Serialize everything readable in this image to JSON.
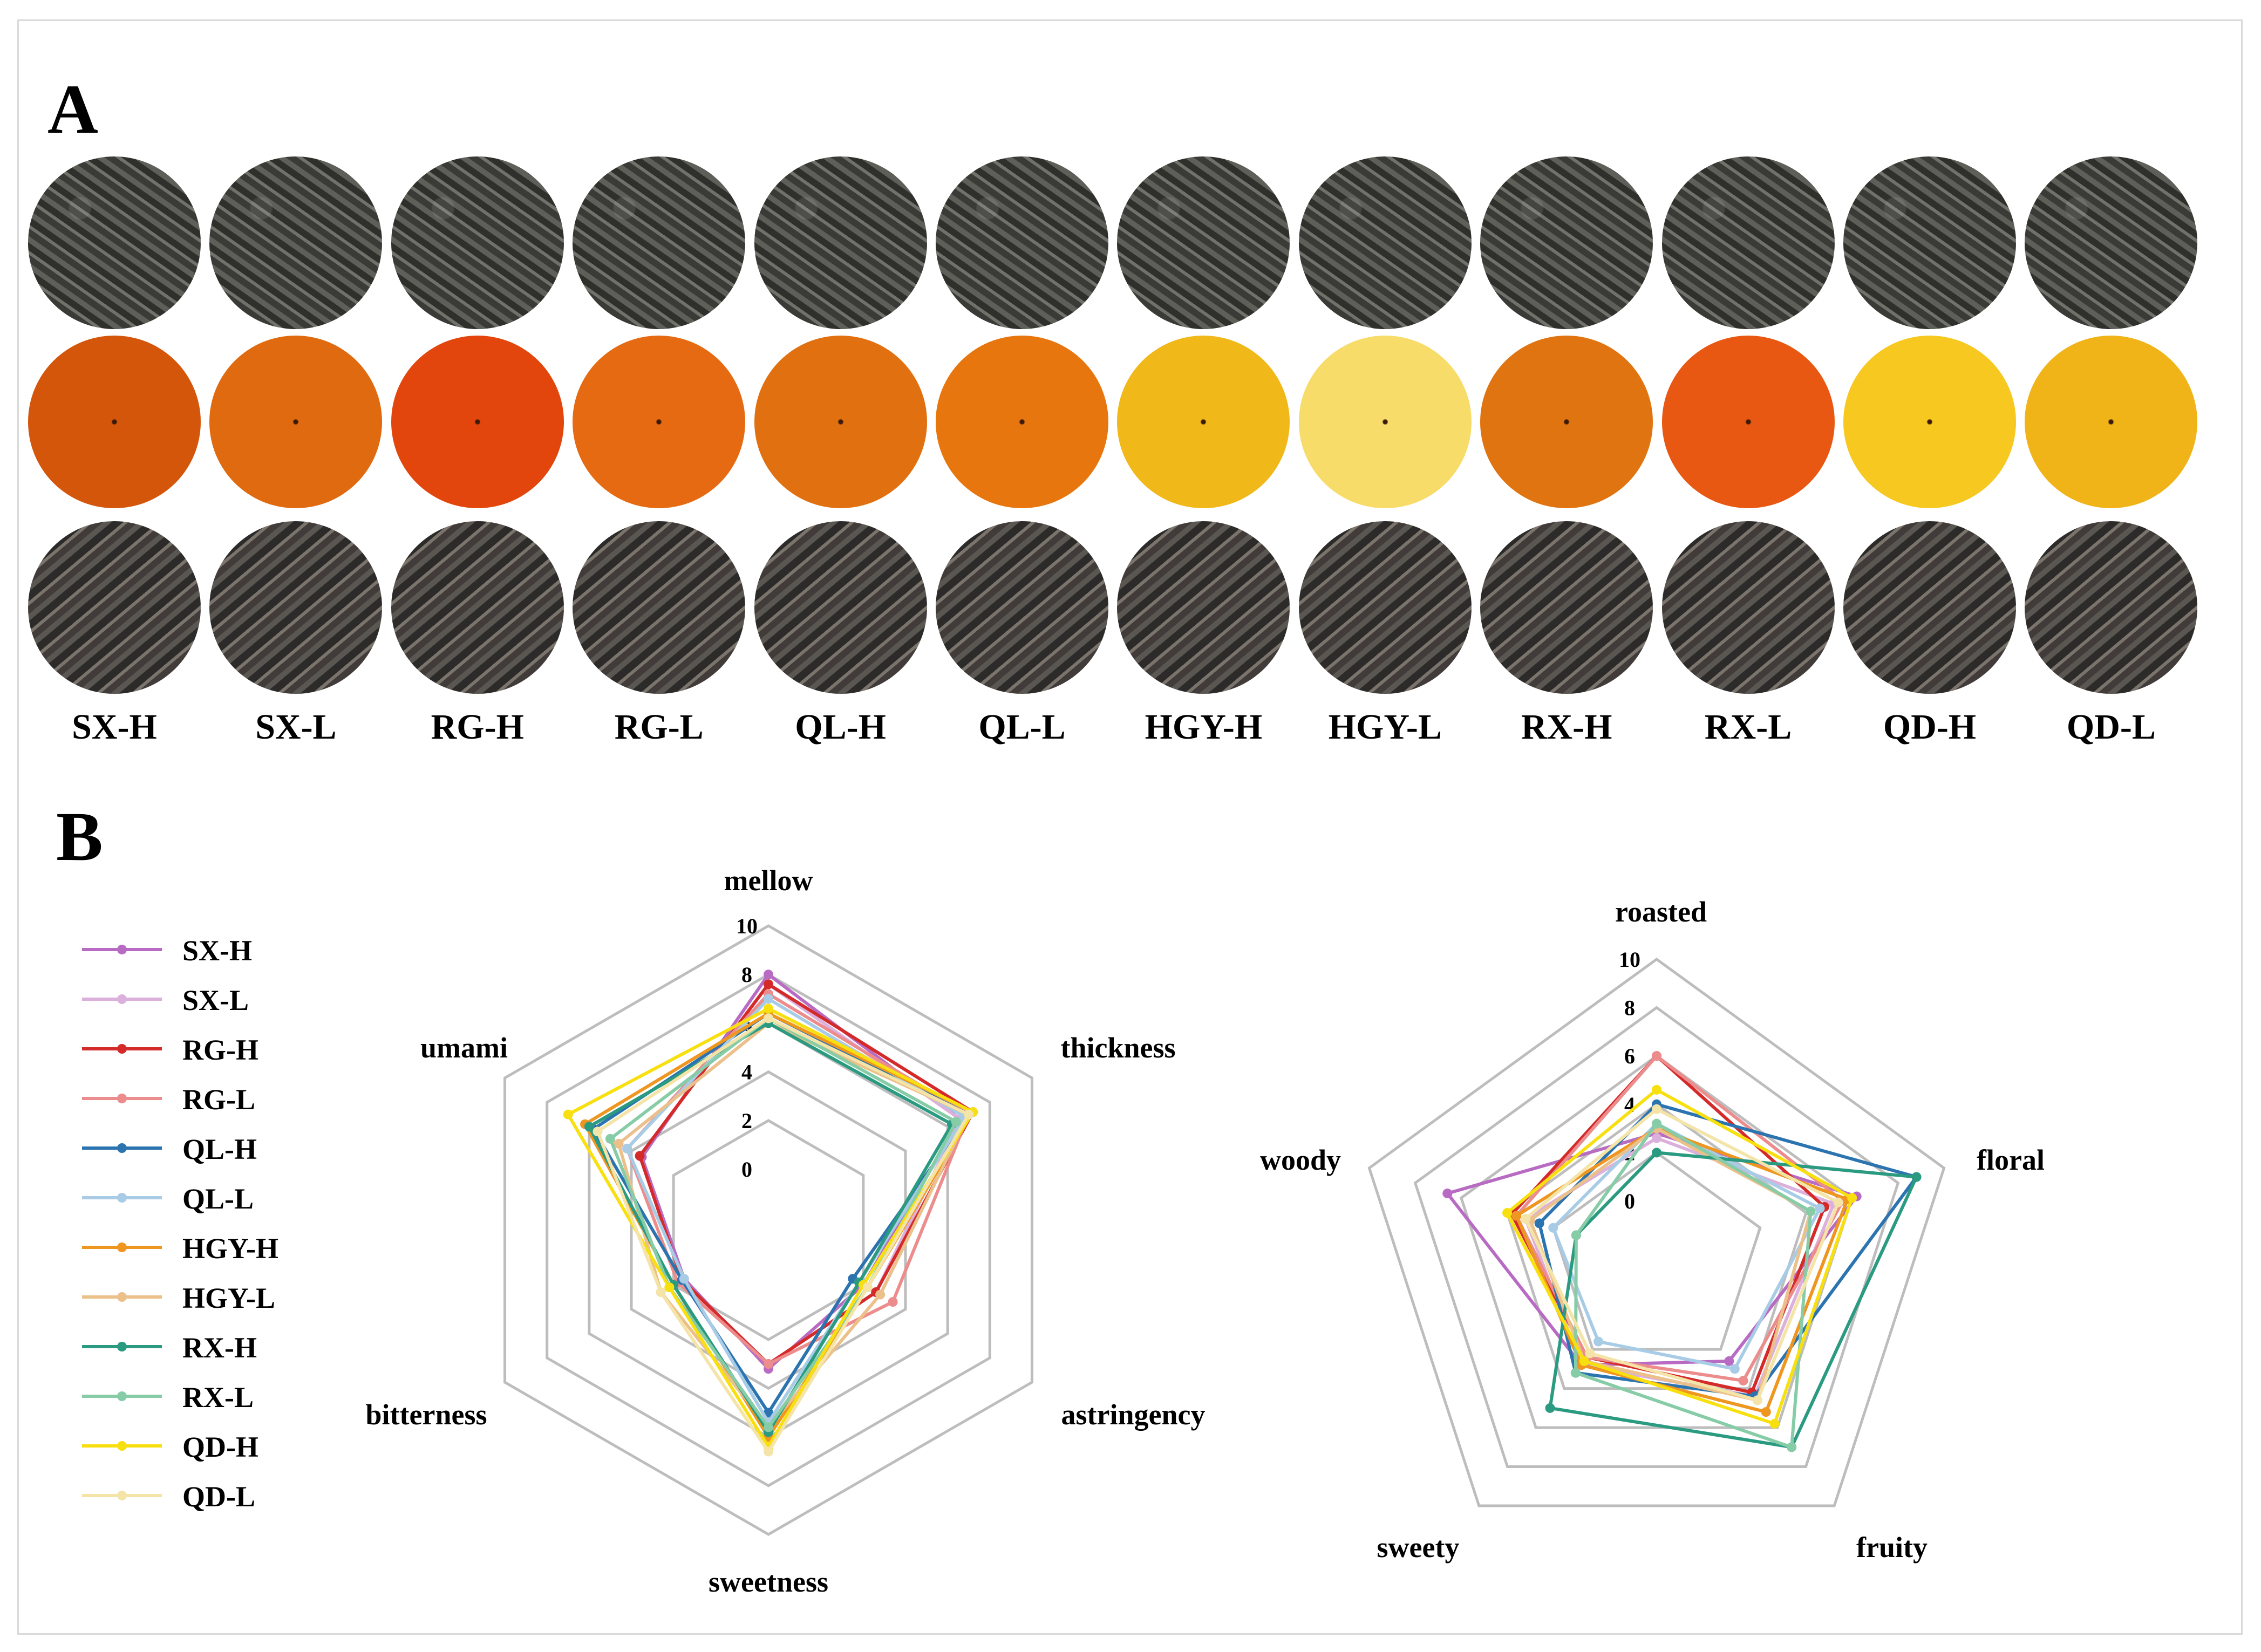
{
  "panels": {
    "a": "A",
    "b": "B"
  },
  "samples": [
    "SX-H",
    "SX-L",
    "RG-H",
    "RG-L",
    "QL-H",
    "QL-L",
    "HGY-H",
    "HGY-L",
    "RX-H",
    "RX-L",
    "QD-H",
    "QD-L"
  ],
  "infusion_colors": [
    "#d4560a",
    "#e06a10",
    "#e2460c",
    "#e66a12",
    "#e07010",
    "#e8760e",
    "#f0b818",
    "#f8dc6a",
    "#e07410",
    "#e85812",
    "#f6c820",
    "#f0b418"
  ],
  "chart_data": [
    {
      "type": "radar",
      "axes": [
        "mellow",
        "thickness",
        "astringency",
        "sweetness",
        "bitterness",
        "umami"
      ],
      "rmax": 10,
      "ticks": [
        "0",
        "2",
        "4",
        "6",
        "8",
        "10"
      ],
      "series": [
        {
          "name": "SX-H",
          "color": "#b86bc2",
          "values": [
            8.0,
            6.6,
            2.0,
            3.2,
            1.5,
            3.5
          ]
        },
        {
          "name": "SX-L",
          "color": "#dcb0dc",
          "values": [
            7.6,
            6.6,
            2.6,
            3.0,
            1.6,
            3.6
          ]
        },
        {
          "name": "RG-H",
          "color": "#d42a2a",
          "values": [
            7.6,
            7.2,
            2.6,
            3.0,
            1.6,
            3.6
          ]
        },
        {
          "name": "RG-L",
          "color": "#ec8c8c",
          "values": [
            7.2,
            7.0,
            3.4,
            3.0,
            1.8,
            4.2
          ]
        },
        {
          "name": "QL-H",
          "color": "#2c74b0",
          "values": [
            6.4,
            7.0,
            1.5,
            5.0,
            1.6,
            5.8
          ]
        },
        {
          "name": "QL-L",
          "color": "#a8cce6",
          "values": [
            7.0,
            6.8,
            1.8,
            5.4,
            1.5,
            4.2
          ]
        },
        {
          "name": "HGY-H",
          "color": "#ee9620",
          "values": [
            6.4,
            7.2,
            2.2,
            6.0,
            2.0,
            6.2
          ]
        },
        {
          "name": "HGY-L",
          "color": "#ecc08a",
          "values": [
            6.0,
            7.0,
            2.8,
            5.6,
            2.6,
            4.6
          ]
        },
        {
          "name": "RX-H",
          "color": "#2a9a80",
          "values": [
            6.0,
            6.2,
            1.8,
            5.8,
            2.0,
            6.0
          ]
        },
        {
          "name": "RX-L",
          "color": "#86cca6",
          "values": [
            6.2,
            6.4,
            2.2,
            5.6,
            2.2,
            5.0
          ]
        },
        {
          "name": "QD-H",
          "color": "#f8e010",
          "values": [
            6.6,
            7.2,
            2.0,
            6.4,
            2.2,
            7.0
          ]
        },
        {
          "name": "QD-L",
          "color": "#f4e4a8",
          "values": [
            6.2,
            7.0,
            2.2,
            6.6,
            2.6,
            5.6
          ]
        }
      ]
    },
    {
      "type": "radar",
      "axes": [
        "roasted",
        "floral",
        "fruity",
        "sweety",
        "woody"
      ],
      "rmax": 10,
      "ticks": [
        "0",
        "2",
        "4",
        "6",
        "8",
        "10"
      ],
      "series": [
        {
          "name": "SX-H",
          "color": "#b86bc2",
          "values": [
            2.8,
            6.2,
            2.6,
            2.8,
            6.6
          ]
        },
        {
          "name": "SX-L",
          "color": "#dcb0dc",
          "values": [
            2.6,
            5.2,
            4.4,
            2.8,
            3.2
          ]
        },
        {
          "name": "RG-H",
          "color": "#d42a2a",
          "values": [
            6.0,
            4.8,
            4.2,
            2.4,
            3.8
          ]
        },
        {
          "name": "RG-L",
          "color": "#ec8c8c",
          "values": [
            6.0,
            5.6,
            3.6,
            2.4,
            3.6
          ]
        },
        {
          "name": "QL-H",
          "color": "#2c74b0",
          "values": [
            4.0,
            8.8,
            4.4,
            3.2,
            2.6
          ]
        },
        {
          "name": "QL-L",
          "color": "#a8cce6",
          "values": [
            3.2,
            4.6,
            3.0,
            1.6,
            2.0
          ]
        },
        {
          "name": "HGY-H",
          "color": "#ee9620",
          "values": [
            3.0,
            5.8,
            5.2,
            2.8,
            3.6
          ]
        },
        {
          "name": "HGY-L",
          "color": "#ecc08a",
          "values": [
            3.0,
            4.2,
            4.6,
            2.6,
            3.0
          ]
        },
        {
          "name": "RX-H",
          "color": "#2a9a80",
          "values": [
            2.0,
            8.8,
            7.0,
            5.0,
            1.0
          ]
        },
        {
          "name": "RX-L",
          "color": "#86cca6",
          "values": [
            3.2,
            4.2,
            7.0,
            3.2,
            1.0
          ]
        },
        {
          "name": "QD-H",
          "color": "#f8e010",
          "values": [
            4.6,
            6.0,
            5.8,
            2.6,
            4.0
          ]
        },
        {
          "name": "QD-L",
          "color": "#f4e4a8",
          "values": [
            3.8,
            5.4,
            4.6,
            2.2,
            3.2
          ]
        }
      ]
    }
  ]
}
